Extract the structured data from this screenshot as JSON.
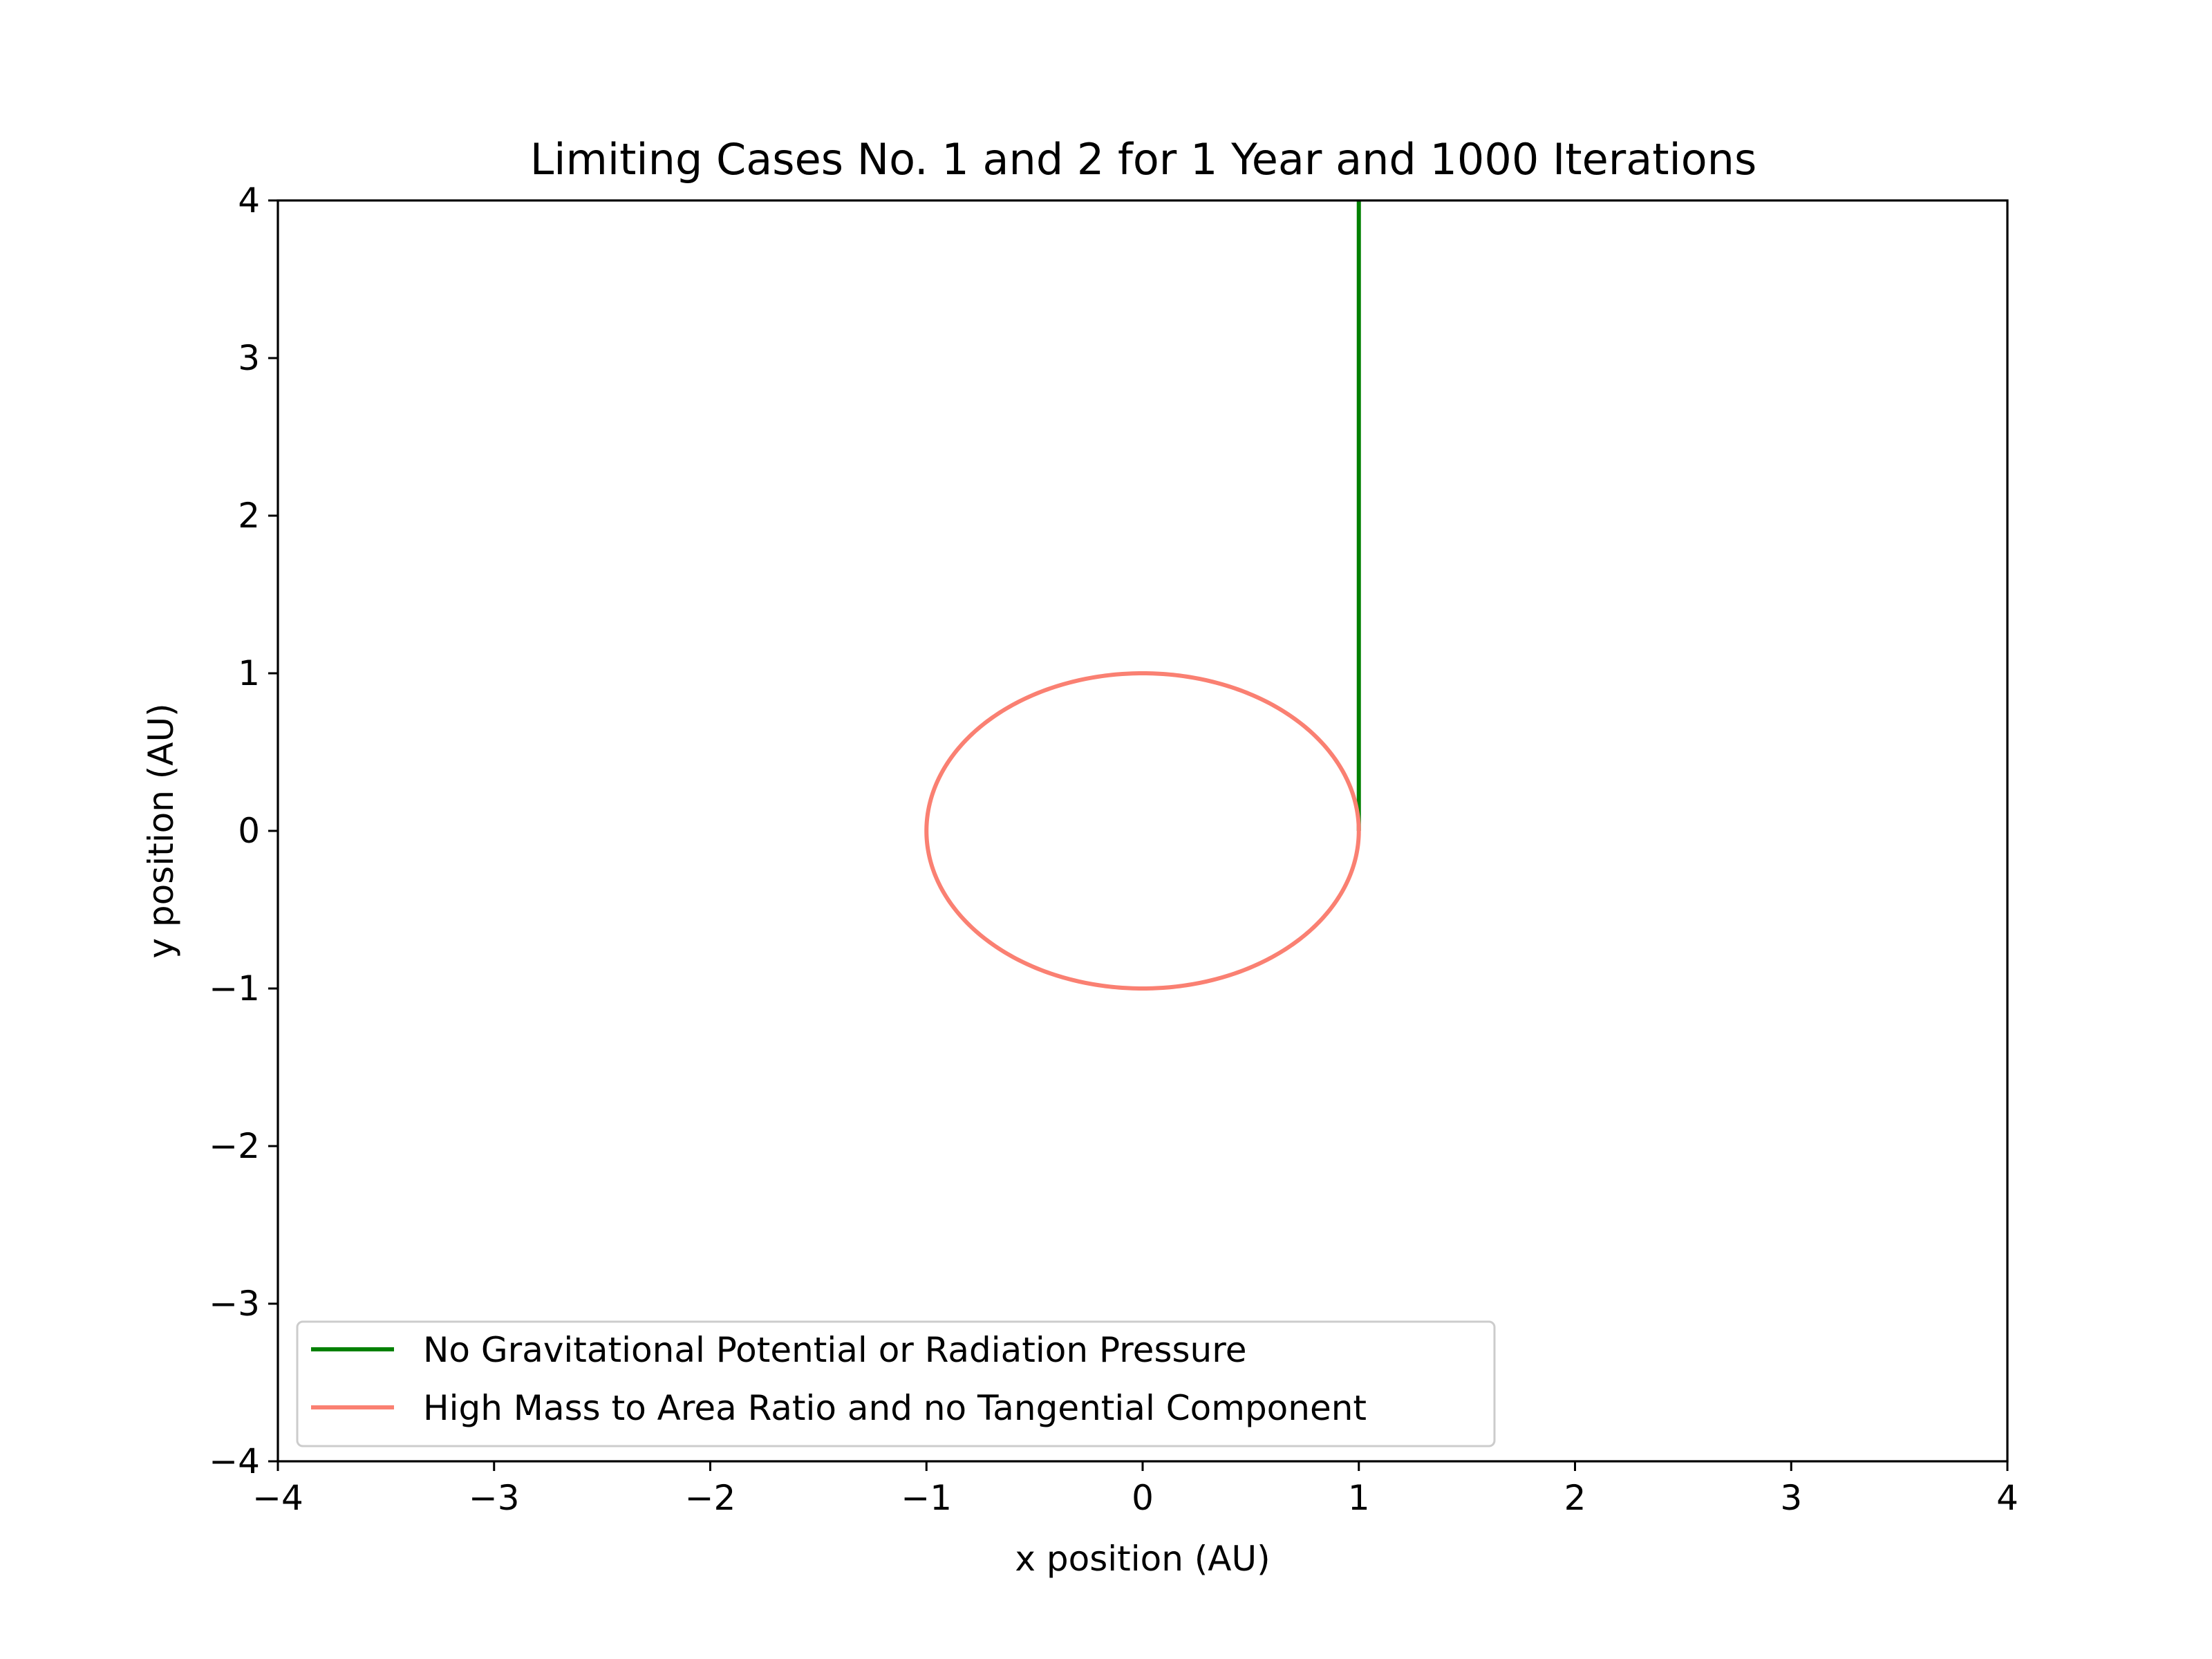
{
  "chart_data": {
    "type": "line",
    "title": "Limiting Cases No. 1 and 2 for 1 Year and 1000 Iterations",
    "xlabel": "x position (AU)",
    "ylabel": "y position (AU)",
    "xlim": [
      -4,
      4
    ],
    "ylim": [
      -4,
      4
    ],
    "xticks": [
      -4,
      -3,
      -2,
      -1,
      0,
      1,
      2,
      3,
      4
    ],
    "yticks": [
      -4,
      -3,
      -2,
      -1,
      0,
      1,
      2,
      3,
      4
    ],
    "xtick_labels": [
      "−4",
      "−3",
      "−2",
      "−1",
      "0",
      "1",
      "2",
      "3",
      "4"
    ],
    "ytick_labels": [
      "−4",
      "−3",
      "−2",
      "−1",
      "0",
      "1",
      "2",
      "3",
      "4"
    ],
    "grid": false,
    "legend_position": "lower-left",
    "series": [
      {
        "name": "No Gravitational Potential or Radiation Pressure",
        "color": "#008000",
        "x": [
          1,
          1
        ],
        "y": [
          0,
          4
        ]
      },
      {
        "name": "High Mass to Area Ratio and no Tangential Component",
        "color": "#fa8072",
        "shape": "circle",
        "center": [
          0,
          0
        ],
        "radius": 1,
        "x": [
          1,
          0.7071,
          0,
          -0.7071,
          -1,
          -0.7071,
          0,
          0.7071,
          1
        ],
        "y": [
          0,
          0.7071,
          1,
          0.7071,
          0,
          -0.7071,
          -1,
          -0.7071,
          0
        ]
      }
    ]
  }
}
